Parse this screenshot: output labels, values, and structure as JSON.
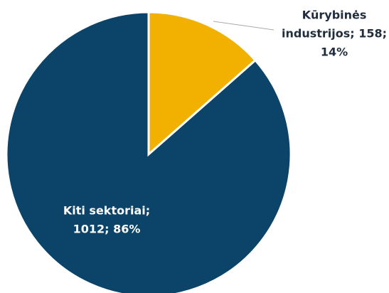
{
  "chart_data": {
    "type": "pie",
    "values": [
      158,
      1012
    ],
    "colors": [
      "#f2b100",
      "#0b4468"
    ],
    "value_labels": [
      [
        "Kūrybinės",
        "industrijos; 158;",
        "14%"
      ],
      [
        "Kiti sektoriai;",
        "1012; 86%"
      ]
    ],
    "label_colors": [
      "#1f2d3d",
      "#ffffff"
    ]
  }
}
